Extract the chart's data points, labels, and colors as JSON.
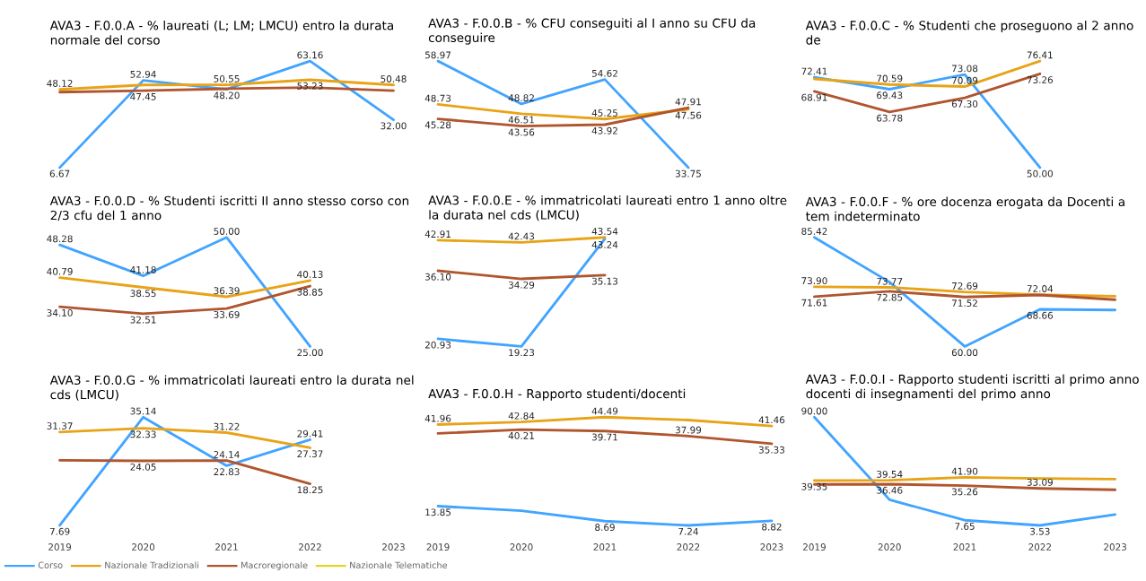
{
  "chart_data": [
    {
      "type": "line",
      "title": "AVA3 - F.0.0.A - % laureati (L; LM; LMCU) entro la durata normale del corso",
      "categories": [
        "2019",
        "2020",
        "2021",
        "2022",
        "2023"
      ],
      "tick_labels": false,
      "marker": "none",
      "series": [
        {
          "color": "#41a4ff",
          "values": [
            6.67,
            52.94,
            48.2,
            63.16,
            32.0
          ],
          "value_labels": [
            "6.67",
            "52.94",
            "48.20",
            "63.16",
            "32.00"
          ]
        },
        {
          "color": "#e8a317",
          "values": [
            48.12,
            50.5,
            50.55,
            53.23,
            50.48
          ],
          "value_labels": [
            "48.12",
            null,
            "50.55",
            "53.23",
            "50.48"
          ]
        },
        {
          "color": "#b0552e",
          "values": [
            46.7,
            47.45,
            48.5,
            49.1,
            47.5
          ],
          "value_labels": [
            null,
            "47.45",
            null,
            null,
            null
          ]
        },
        {
          "color": "#e6d327",
          "values": [
            null,
            null,
            null,
            null,
            null
          ]
        }
      ]
    },
    {
      "type": "line",
      "title": "AVA3 - F.0.0.B - % CFU conseguiti al I anno su CFU da conseguire",
      "categories": [
        "2019",
        "2020",
        "2021",
        "2022",
        "2023"
      ],
      "tick_labels": false,
      "marker": "none",
      "series": [
        {
          "color": "#41a4ff",
          "values": [
            58.97,
            48.82,
            54.62,
            33.75,
            null
          ],
          "value_labels": [
            "58.97",
            "48.82",
            "54.62",
            "33.75",
            null
          ]
        },
        {
          "color": "#e8a317",
          "values": [
            48.73,
            46.51,
            45.25,
            47.56,
            null
          ],
          "value_labels": [
            "48.73",
            "46.51",
            "45.25",
            "47.56",
            null
          ]
        },
        {
          "color": "#b0552e",
          "values": [
            45.28,
            43.56,
            43.92,
            47.91,
            null
          ],
          "value_labels": [
            "45.28",
            "43.56",
            "43.92",
            "47.91",
            null
          ]
        },
        {
          "color": "#e6d327",
          "values": [
            null,
            null,
            null,
            null,
            null
          ]
        }
      ]
    },
    {
      "type": "line",
      "title": "AVA3 - F.0.0.C - % Studenti che proseguono al 2 anno de",
      "categories": [
        "2019",
        "2020",
        "2021",
        "2022",
        "2023"
      ],
      "tick_labels": false,
      "marker": "none",
      "series": [
        {
          "color": "#41a4ff",
          "values": [
            72.41,
            69.43,
            73.08,
            50.0,
            null
          ],
          "value_labels": [
            "72.41",
            "69.43",
            "73.08",
            "50.00",
            null
          ]
        },
        {
          "color": "#e8a317",
          "values": [
            72.0,
            70.59,
            70.09,
            76.41,
            null
          ],
          "value_labels": [
            null,
            "70.59",
            "70.09",
            "76.41",
            null
          ]
        },
        {
          "color": "#b0552e",
          "values": [
            68.91,
            63.78,
            67.3,
            73.26,
            null
          ],
          "value_labels": [
            "68.91",
            "63.78",
            "67.30",
            "73.26",
            null
          ]
        },
        {
          "color": "#e6d327",
          "values": [
            null,
            null,
            null,
            null,
            null
          ]
        }
      ]
    },
    {
      "type": "line",
      "title": "AVA3 - F.0.0.D - % Studenti iscritti II anno stesso corso con 2/3 cfu del 1 anno",
      "categories": [
        "2019",
        "2020",
        "2021",
        "2022",
        "2023"
      ],
      "tick_labels": false,
      "marker": "none",
      "series": [
        {
          "color": "#41a4ff",
          "values": [
            48.28,
            41.18,
            50.0,
            25.0,
            null
          ],
          "value_labels": [
            "48.28",
            "41.18",
            "50.00",
            "25.00",
            null
          ]
        },
        {
          "color": "#e8a317",
          "values": [
            40.79,
            38.55,
            36.39,
            40.13,
            null
          ],
          "value_labels": [
            "40.79",
            "38.55",
            "36.39",
            "40.13",
            null
          ]
        },
        {
          "color": "#b0552e",
          "values": [
            34.1,
            32.51,
            33.69,
            38.85,
            null
          ],
          "value_labels": [
            "34.10",
            "32.51",
            "33.69",
            "38.85",
            null
          ]
        },
        {
          "color": "#e6d327",
          "values": [
            null,
            null,
            null,
            null,
            null
          ]
        }
      ]
    },
    {
      "type": "line",
      "title": "AVA3 - F.0.0.E - % immatricolati laureati entro 1 anno oltre la durata nel cds (LMCU)",
      "categories": [
        "2019",
        "2020",
        "2021",
        "2022",
        "2023"
      ],
      "tick_labels": false,
      "marker": "none",
      "series": [
        {
          "color": "#41a4ff",
          "values": [
            20.93,
            19.23,
            43.24,
            null,
            null
          ],
          "value_labels": [
            "20.93",
            "19.23",
            "43.24",
            null,
            null
          ]
        },
        {
          "color": "#e8a317",
          "values": [
            42.91,
            42.43,
            43.54,
            null,
            null
          ],
          "value_labels": [
            "42.91",
            "42.43",
            "43.54",
            null,
            null
          ]
        },
        {
          "color": "#b0552e",
          "values": [
            36.1,
            34.29,
            35.13,
            null,
            null
          ],
          "value_labels": [
            "36.10",
            "34.29",
            "35.13",
            null,
            null
          ]
        },
        {
          "color": "#e6d327",
          "values": [
            null,
            null,
            null,
            null,
            null
          ]
        }
      ]
    },
    {
      "type": "line",
      "title": "AVA3 - F.0.0.F - % ore docenza erogata da Docenti a tem indeterminato",
      "categories": [
        "2019",
        "2020",
        "2021",
        "2022",
        "2023"
      ],
      "tick_labels": false,
      "marker": "none",
      "series": [
        {
          "color": "#41a4ff",
          "values": [
            85.42,
            75.0,
            60.0,
            68.66,
            68.5
          ],
          "value_labels": [
            "85.42",
            null,
            "60.00",
            "68.66",
            null
          ]
        },
        {
          "color": "#e8a317",
          "values": [
            73.9,
            73.77,
            72.69,
            72.04,
            71.7
          ],
          "value_labels": [
            "73.90",
            "73.77",
            "72.69",
            "72.04",
            null
          ]
        },
        {
          "color": "#b0552e",
          "values": [
            71.61,
            72.85,
            71.52,
            72.0,
            70.9
          ],
          "value_labels": [
            "71.61",
            "72.85",
            "71.52",
            null,
            null
          ]
        },
        {
          "color": "#e6d327",
          "values": [
            null,
            null,
            null,
            null,
            null
          ]
        }
      ]
    },
    {
      "type": "line",
      "title": "AVA3 - F.0.0.G - % immatricolati laureati entro la durata nel cds (LMCU)",
      "categories": [
        "2019",
        "2020",
        "2021",
        "2022",
        "2023"
      ],
      "tick_labels": "x",
      "marker": "none",
      "legend": "bottom",
      "series": [
        {
          "name": "Corso",
          "color": "#41a4ff",
          "values": [
            7.69,
            35.14,
            22.83,
            29.41,
            null
          ],
          "value_labels": [
            "7.69",
            "35.14",
            "22.83",
            "29.41",
            null
          ]
        },
        {
          "name": "Nazionale Tradizionali",
          "color": "#e8a317",
          "values": [
            31.37,
            32.33,
            31.22,
            27.37,
            null
          ],
          "value_labels": [
            "31.37",
            "32.33",
            "31.22",
            "27.37",
            null
          ]
        },
        {
          "name": "Macroregionale",
          "color": "#b0552e",
          "values": [
            24.2,
            24.05,
            24.14,
            18.25,
            null
          ],
          "value_labels": [
            null,
            "24.05",
            "24.14",
            "18.25",
            null
          ]
        },
        {
          "name": "Nazionale Telematiche",
          "color": "#e6d327",
          "values": [
            null,
            null,
            null,
            null,
            null
          ]
        }
      ]
    },
    {
      "type": "line",
      "title": "AVA3 - F.0.0.H - Rapporto studenti/docenti",
      "categories": [
        "2019",
        "2020",
        "2021",
        "2022",
        "2023"
      ],
      "tick_labels": "x",
      "marker": "none",
      "series": [
        {
          "color": "#41a4ff",
          "values": [
            13.85,
            12.3,
            8.69,
            7.24,
            8.82
          ],
          "value_labels": [
            "13.85",
            null,
            "8.69",
            "7.24",
            "8.82"
          ]
        },
        {
          "color": "#e8a317",
          "values": [
            41.96,
            42.84,
            44.49,
            43.5,
            41.46
          ],
          "value_labels": [
            "41.96",
            "42.84",
            "44.49",
            null,
            "41.46"
          ]
        },
        {
          "color": "#b0552e",
          "values": [
            38.9,
            40.21,
            39.71,
            37.99,
            35.33
          ],
          "value_labels": [
            null,
            "40.21",
            "39.71",
            "37.99",
            "35.33"
          ]
        },
        {
          "color": "#e6d327",
          "values": [
            null,
            null,
            null,
            null,
            null
          ]
        }
      ]
    },
    {
      "type": "line",
      "title": "AVA3 - F.0.0.I - Rapporto studenti iscritti al primo anno docenti di insegnamenti del primo anno",
      "categories": [
        "2019",
        "2020",
        "2021",
        "2022",
        "2023"
      ],
      "tick_labels": "x",
      "marker": "none",
      "series": [
        {
          "color": "#41a4ff",
          "values": [
            90.0,
            24.0,
            7.65,
            3.53,
            12.2
          ],
          "value_labels": [
            "90.00",
            null,
            "7.65",
            "3.53",
            null
          ]
        },
        {
          "color": "#e8a317",
          "values": [
            39.35,
            39.54,
            41.9,
            41.0,
            40.5
          ],
          "value_labels": [
            "39.35",
            "39.54",
            "41.90",
            null,
            null
          ]
        },
        {
          "color": "#b0552e",
          "values": [
            36.3,
            36.46,
            35.26,
            33.09,
            32.0
          ],
          "value_labels": [
            null,
            "36.46",
            "35.26",
            "33.09",
            null
          ]
        },
        {
          "color": "#e6d327",
          "values": [
            null,
            null,
            null,
            null,
            null
          ]
        }
      ]
    }
  ]
}
